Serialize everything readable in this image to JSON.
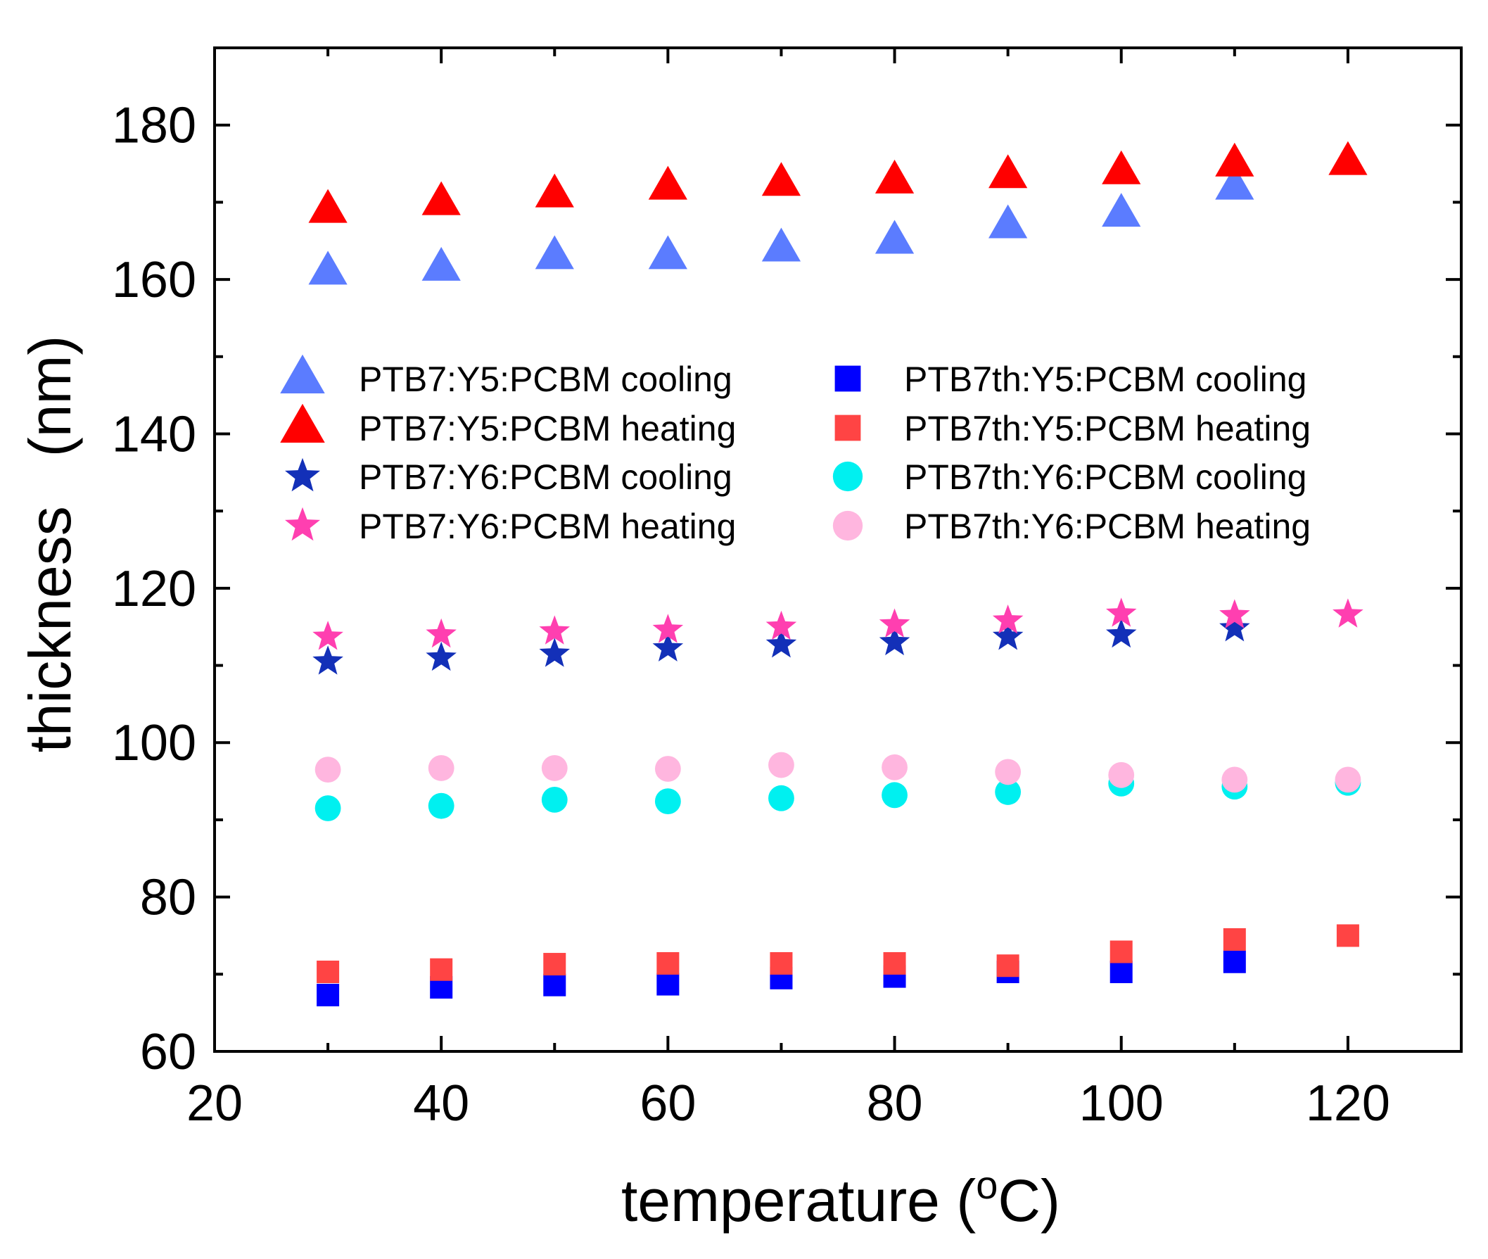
{
  "chart_data": {
    "type": "scatter",
    "title": "",
    "xlabel": "temperature (",
    "xlabel_unit_sup": "o",
    "xlabel_unit": "C)",
    "ylabel": "thickness   (nm)",
    "xlim": [
      20,
      130
    ],
    "ylim": [
      60,
      190
    ],
    "x_ticks": [
      20,
      40,
      60,
      80,
      100,
      120
    ],
    "y_ticks": [
      60,
      80,
      100,
      120,
      140,
      160,
      180
    ],
    "legend_position": "upper-center",
    "series": [
      {
        "name": "PTB7:Y5:PCBM cooling",
        "marker": "triangle",
        "color": "#5b7cff",
        "x": [
          30,
          40,
          50,
          60,
          70,
          80,
          90,
          100,
          110
        ],
        "y": [
          161,
          161.5,
          163,
          163,
          164,
          165,
          167,
          168.5,
          172
        ]
      },
      {
        "name": "PTB7:Y5:PCBM heating",
        "marker": "triangle",
        "color": "#ff0000",
        "x": [
          30,
          40,
          50,
          60,
          70,
          80,
          90,
          100,
          110,
          120
        ],
        "y": [
          169,
          170,
          171,
          172,
          172.5,
          172.8,
          173.5,
          174,
          175,
          175.2
        ]
      },
      {
        "name": "PTB7:Y6:PCBM cooling",
        "marker": "star",
        "color": "#1330b8",
        "x": [
          30,
          40,
          50,
          60,
          70,
          80,
          90,
          100,
          110
        ],
        "y": [
          110.5,
          111,
          111.5,
          112.2,
          112.7,
          113,
          113.7,
          114,
          114.8
        ]
      },
      {
        "name": "PTB7:Y6:PCBM heating",
        "marker": "star",
        "color": "#ff3fb0",
        "x": [
          30,
          40,
          50,
          60,
          70,
          80,
          90,
          100,
          110,
          120
        ],
        "y": [
          113.7,
          114,
          114.4,
          114.6,
          115,
          115.3,
          115.8,
          116.7,
          116.5,
          116.6
        ]
      },
      {
        "name": "PTB7th:Y5:PCBM cooling",
        "marker": "square",
        "color": "#0000ff",
        "x": [
          30,
          40,
          50,
          60,
          70,
          80,
          90,
          100,
          110
        ],
        "y": [
          67.3,
          68.3,
          68.6,
          68.7,
          69.5,
          69.7,
          70.3,
          70.3,
          71.6
        ]
      },
      {
        "name": "PTB7th:Y5:PCBM heating",
        "marker": "square",
        "color": "#ff4444",
        "x": [
          30,
          40,
          50,
          60,
          70,
          80,
          90,
          100,
          110,
          120
        ],
        "y": [
          70.3,
          70.6,
          71.3,
          71.4,
          71.4,
          71.4,
          71.1,
          72.9,
          74.5,
          75
        ]
      },
      {
        "name": "PTB7th:Y6:PCBM cooling",
        "marker": "circle",
        "color": "#00f0f0",
        "x": [
          30,
          40,
          50,
          60,
          70,
          80,
          90,
          100,
          110,
          120
        ],
        "y": [
          91.5,
          91.8,
          92.6,
          92.4,
          92.8,
          93.2,
          93.6,
          94.7,
          94.3,
          94.8
        ]
      },
      {
        "name": "PTB7th:Y6:PCBM heating",
        "marker": "circle",
        "color": "#ffb6df",
        "x": [
          30,
          40,
          50,
          60,
          70,
          80,
          90,
          100,
          110,
          120
        ],
        "y": [
          96.5,
          96.7,
          96.7,
          96.6,
          97.1,
          96.8,
          96.2,
          95.8,
          95.2,
          95.2
        ]
      }
    ]
  }
}
